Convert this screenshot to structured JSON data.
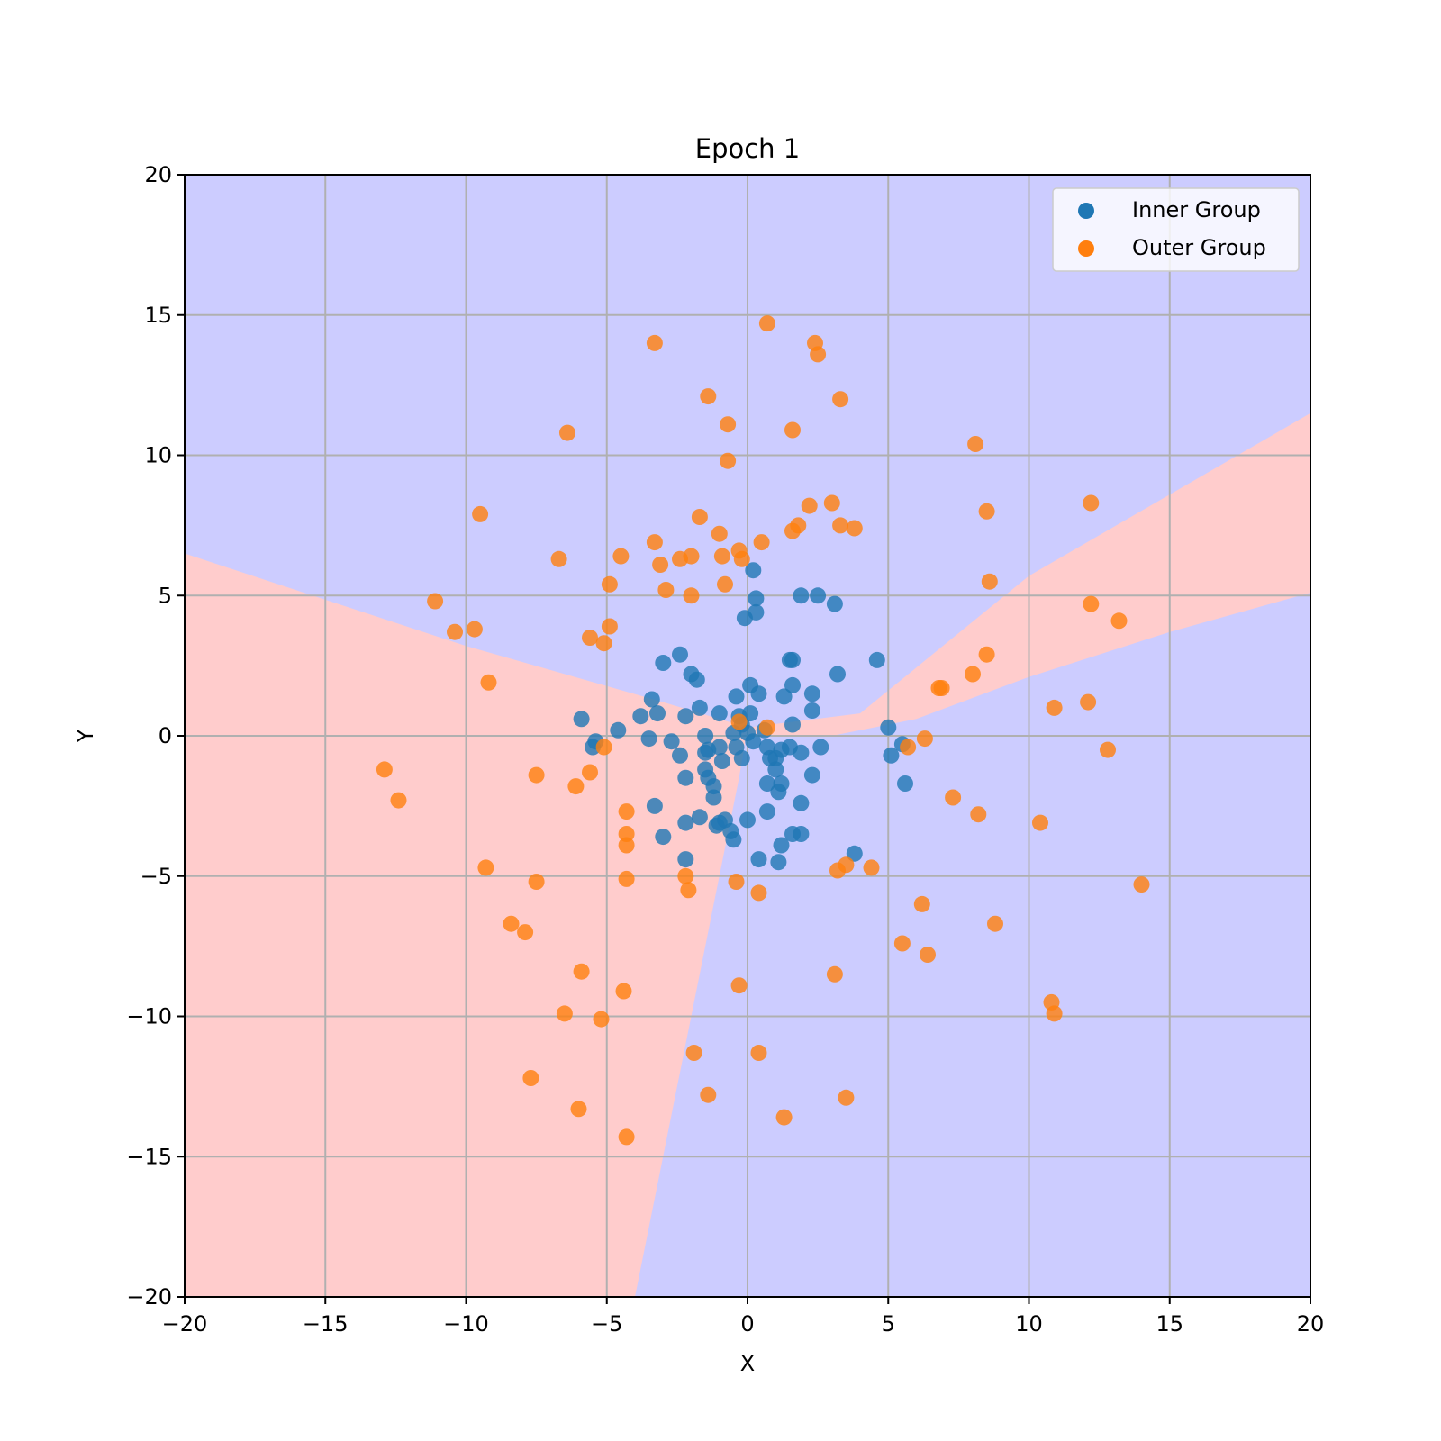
{
  "chart_data": {
    "type": "scatter",
    "title": "Epoch 1",
    "xlabel": "X",
    "ylabel": "Y",
    "xlim": [
      -20,
      20
    ],
    "ylim": [
      -20,
      20
    ],
    "xticks": [
      -20,
      -15,
      -10,
      -5,
      0,
      5,
      10,
      15,
      20
    ],
    "yticks": [
      -20,
      -15,
      -10,
      -5,
      0,
      5,
      10,
      15,
      20
    ],
    "xtick_labels": [
      "−20",
      "−15",
      "−10",
      "−5",
      "0",
      "5",
      "10",
      "15",
      "20"
    ],
    "ytick_labels": [
      "−20",
      "−15",
      "−10",
      "−5",
      "0",
      "5",
      "10",
      "15",
      "20"
    ],
    "grid": true,
    "legend_position": "top-right",
    "decision_regions": {
      "colors": {
        "class_0": "#ccccff",
        "class_1": "#ffcccc"
      },
      "class_1_regions": [
        [
          [
            -20,
            6.5
          ],
          [
            -10,
            3.2
          ],
          [
            -3,
            1.2
          ],
          [
            0,
            0.3
          ],
          [
            -0.3,
            -1.5
          ],
          [
            -2,
            -10
          ],
          [
            -4,
            -20
          ],
          [
            -20,
            -20
          ]
        ],
        [
          [
            0,
            0.3
          ],
          [
            4,
            0.8
          ],
          [
            10,
            5.7
          ],
          [
            20,
            11.5
          ],
          [
            20,
            5.1
          ],
          [
            15,
            3.7
          ],
          [
            10,
            2.1
          ],
          [
            6,
            0.6
          ],
          [
            3,
            0
          ],
          [
            0,
            0
          ]
        ]
      ]
    },
    "series": [
      {
        "name": "Inner Group",
        "color": "#1f77b4",
        "points": [
          [
            0.2,
            5.9
          ],
          [
            0.3,
            4.9
          ],
          [
            -0.1,
            4.2
          ],
          [
            0.3,
            4.4
          ],
          [
            1.9,
            5.0
          ],
          [
            2.5,
            5.0
          ],
          [
            3.1,
            4.7
          ],
          [
            4.6,
            2.7
          ],
          [
            3.2,
            2.2
          ],
          [
            1.5,
            2.7
          ],
          [
            1.6,
            2.7
          ],
          [
            1.6,
            1.8
          ],
          [
            2.3,
            1.5
          ],
          [
            1.3,
            1.4
          ],
          [
            0.1,
            1.8
          ],
          [
            0.4,
            1.5
          ],
          [
            -0.4,
            1.4
          ],
          [
            -2.4,
            2.9
          ],
          [
            -3.0,
            2.6
          ],
          [
            -2.0,
            2.2
          ],
          [
            -1.8,
            2.0
          ],
          [
            -3.4,
            1.3
          ],
          [
            -1.7,
            1.0
          ],
          [
            -3.2,
            0.8
          ],
          [
            -3.8,
            0.7
          ],
          [
            -2.2,
            0.7
          ],
          [
            -1.0,
            0.8
          ],
          [
            0.1,
            0.8
          ],
          [
            -0.3,
            0.7
          ],
          [
            -0.2,
            0.4
          ],
          [
            0.6,
            0.2
          ],
          [
            1.6,
            0.4
          ],
          [
            2.3,
            0.9
          ],
          [
            -4.6,
            0.2
          ],
          [
            -5.9,
            0.6
          ],
          [
            -5.4,
            -0.2
          ],
          [
            -5.5,
            -0.4
          ],
          [
            -3.5,
            -0.1
          ],
          [
            -2.7,
            -0.2
          ],
          [
            -1.5,
            0.0
          ],
          [
            -0.5,
            0.1
          ],
          [
            0.0,
            0.1
          ],
          [
            0.2,
            -0.2
          ],
          [
            -0.4,
            -0.4
          ],
          [
            -1.4,
            -0.5
          ],
          [
            -1.0,
            -0.4
          ],
          [
            -2.4,
            -0.7
          ],
          [
            -1.5,
            -0.6
          ],
          [
            0.7,
            -0.4
          ],
          [
            1.2,
            -0.5
          ],
          [
            1.5,
            -0.4
          ],
          [
            2.6,
            -0.4
          ],
          [
            1.9,
            -0.6
          ],
          [
            0.8,
            -0.8
          ],
          [
            1.0,
            -0.8
          ],
          [
            -0.2,
            -0.8
          ],
          [
            -0.9,
            -0.9
          ],
          [
            -1.5,
            -1.2
          ],
          [
            1.0,
            -1.2
          ],
          [
            2.3,
            -1.4
          ],
          [
            -2.2,
            -1.5
          ],
          [
            -1.4,
            -1.5
          ],
          [
            -1.2,
            -1.8
          ],
          [
            0.7,
            -1.7
          ],
          [
            1.2,
            -1.7
          ],
          [
            1.1,
            -2.0
          ],
          [
            -1.2,
            -2.2
          ],
          [
            -3.3,
            -2.5
          ],
          [
            1.9,
            -2.4
          ],
          [
            0.7,
            -2.7
          ],
          [
            -1.7,
            -2.9
          ],
          [
            -2.2,
            -3.1
          ],
          [
            -1.0,
            -3.1
          ],
          [
            -0.8,
            -3.0
          ],
          [
            -1.1,
            -3.2
          ],
          [
            0.0,
            -3.0
          ],
          [
            -0.6,
            -3.4
          ],
          [
            -3.0,
            -3.6
          ],
          [
            -0.5,
            -3.7
          ],
          [
            1.6,
            -3.5
          ],
          [
            1.9,
            -3.5
          ],
          [
            1.2,
            -3.9
          ],
          [
            3.8,
            -4.2
          ],
          [
            0.4,
            -4.4
          ],
          [
            1.1,
            -4.5
          ],
          [
            -2.2,
            -4.4
          ],
          [
            5.0,
            0.3
          ],
          [
            5.1,
            -0.7
          ],
          [
            5.5,
            -0.3
          ],
          [
            5.6,
            -1.7
          ]
        ]
      },
      {
        "name": "Outer Group",
        "color": "#ff7f0e",
        "points": [
          [
            0.7,
            14.7
          ],
          [
            -3.3,
            14.0
          ],
          [
            2.4,
            14.0
          ],
          [
            2.5,
            13.6
          ],
          [
            3.3,
            12.0
          ],
          [
            -1.4,
            12.1
          ],
          [
            -0.7,
            11.1
          ],
          [
            1.6,
            10.9
          ],
          [
            -6.4,
            10.8
          ],
          [
            -0.7,
            9.8
          ],
          [
            8.1,
            10.4
          ],
          [
            3.0,
            8.3
          ],
          [
            2.2,
            8.2
          ],
          [
            12.2,
            8.3
          ],
          [
            -9.5,
            7.9
          ],
          [
            -1.7,
            7.8
          ],
          [
            1.8,
            7.5
          ],
          [
            1.6,
            7.3
          ],
          [
            3.3,
            7.5
          ],
          [
            3.8,
            7.4
          ],
          [
            8.5,
            8.0
          ],
          [
            -1.0,
            7.2
          ],
          [
            -3.3,
            6.9
          ],
          [
            0.5,
            6.9
          ],
          [
            -0.3,
            6.6
          ],
          [
            -0.9,
            6.4
          ],
          [
            -4.5,
            6.4
          ],
          [
            -2.0,
            6.4
          ],
          [
            -2.4,
            6.3
          ],
          [
            -6.7,
            6.3
          ],
          [
            -3.1,
            6.1
          ],
          [
            -0.2,
            6.3
          ],
          [
            -4.9,
            5.4
          ],
          [
            -2.9,
            5.2
          ],
          [
            -0.8,
            5.4
          ],
          [
            -2.0,
            5.0
          ],
          [
            8.6,
            5.5
          ],
          [
            -11.1,
            4.8
          ],
          [
            -10.4,
            3.7
          ],
          [
            -9.7,
            3.8
          ],
          [
            -4.9,
            3.9
          ],
          [
            -5.6,
            3.5
          ],
          [
            -5.1,
            3.3
          ],
          [
            12.2,
            4.7
          ],
          [
            13.2,
            4.1
          ],
          [
            8.5,
            2.9
          ],
          [
            8.0,
            2.2
          ],
          [
            6.8,
            1.7
          ],
          [
            6.9,
            1.7
          ],
          [
            -9.2,
            1.9
          ],
          [
            10.9,
            1.0
          ],
          [
            12.1,
            1.2
          ],
          [
            -0.3,
            0.5
          ],
          [
            0.7,
            0.3
          ],
          [
            6.3,
            -0.1
          ],
          [
            5.7,
            -0.4
          ],
          [
            12.8,
            -0.5
          ],
          [
            -5.1,
            -0.4
          ],
          [
            -12.9,
            -1.2
          ],
          [
            -7.5,
            -1.4
          ],
          [
            -5.6,
            -1.3
          ],
          [
            -6.1,
            -1.8
          ],
          [
            -12.4,
            -2.3
          ],
          [
            7.3,
            -2.2
          ],
          [
            8.2,
            -2.8
          ],
          [
            10.4,
            -3.1
          ],
          [
            -4.3,
            -2.7
          ],
          [
            -4.3,
            -3.5
          ],
          [
            -4.3,
            -3.9
          ],
          [
            -9.3,
            -4.7
          ],
          [
            -4.3,
            -5.1
          ],
          [
            -2.2,
            -5.0
          ],
          [
            -2.1,
            -5.5
          ],
          [
            -7.5,
            -5.2
          ],
          [
            -0.4,
            -5.2
          ],
          [
            0.4,
            -5.6
          ],
          [
            3.2,
            -4.8
          ],
          [
            3.5,
            -4.6
          ],
          [
            4.4,
            -4.7
          ],
          [
            14.0,
            -5.3
          ],
          [
            6.2,
            -6.0
          ],
          [
            -8.4,
            -6.7
          ],
          [
            -7.9,
            -7.0
          ],
          [
            8.8,
            -6.7
          ],
          [
            5.5,
            -7.4
          ],
          [
            6.4,
            -7.8
          ],
          [
            -5.9,
            -8.4
          ],
          [
            3.1,
            -8.5
          ],
          [
            -0.3,
            -8.9
          ],
          [
            -4.4,
            -9.1
          ],
          [
            10.8,
            -9.5
          ],
          [
            10.9,
            -9.9
          ],
          [
            -6.5,
            -9.9
          ],
          [
            -5.2,
            -10.1
          ],
          [
            -1.9,
            -11.3
          ],
          [
            0.4,
            -11.3
          ],
          [
            -7.7,
            -12.2
          ],
          [
            -1.4,
            -12.8
          ],
          [
            3.5,
            -12.9
          ],
          [
            -6.0,
            -13.3
          ],
          [
            1.3,
            -13.6
          ],
          [
            -4.3,
            -14.3
          ]
        ]
      }
    ]
  }
}
